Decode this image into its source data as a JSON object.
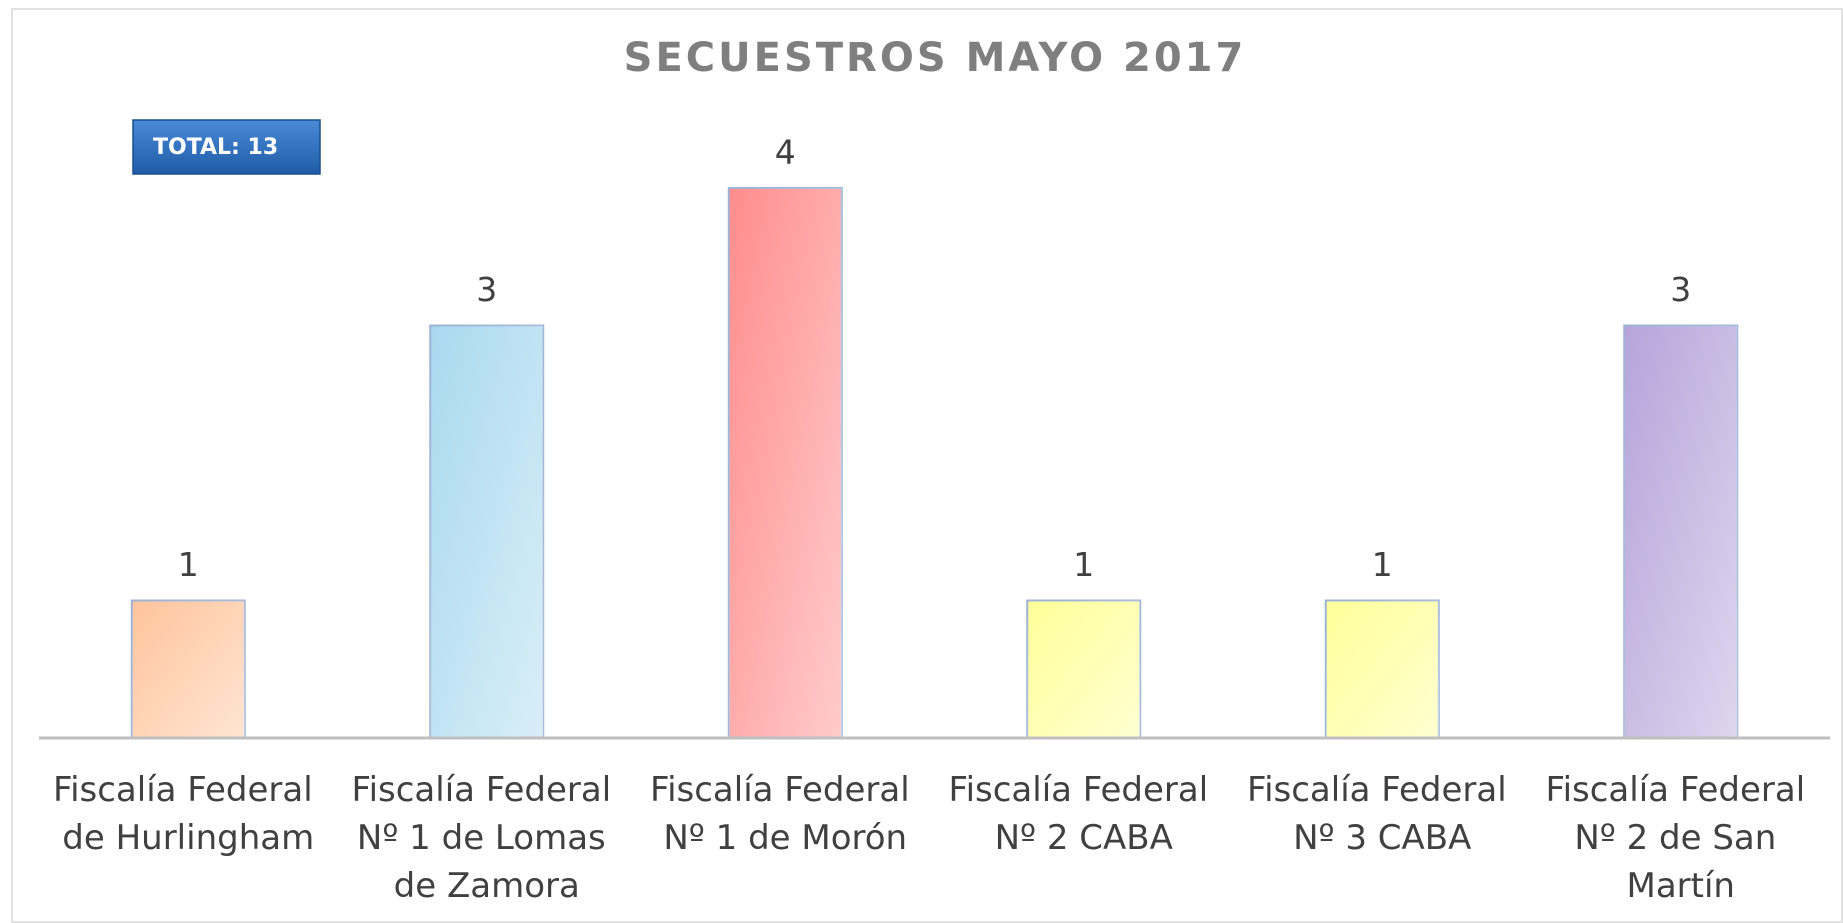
{
  "chart_data": {
    "type": "bar",
    "title": "SECUESTROS MAYO 2017",
    "annotation": "TOTAL: 13",
    "categories": [
      "Fiscalía Federal de Hurlingham",
      "Fiscalía Federal Nº 1 de Lomas de Zamora",
      "Fiscalía Federal Nº 1 de Morón",
      "Fiscalía Federal Nº 2 CABA",
      "Fiscalía Federal Nº 3 CABA",
      "Fiscalía Federal Nº 2 de San Martín"
    ],
    "values": [
      1,
      3,
      4,
      1,
      1,
      3
    ],
    "colors": [
      "#ffc49c",
      "#a9d9ef",
      "#ff8c8c",
      "#ffff99",
      "#ffff99",
      "#b7a3da"
    ],
    "ylim": [
      0,
      4
    ]
  }
}
